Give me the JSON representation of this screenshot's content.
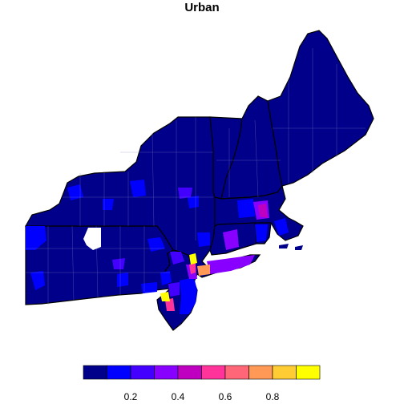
{
  "map": {
    "title": "Urban",
    "region": "Northeastern United States counties",
    "colors": {
      "low": "#00008b",
      "state_border": "#000000",
      "county_border": "#8080c0",
      "missing": "#ffffff"
    }
  },
  "legend": {
    "bins": [
      {
        "upper": 0.1,
        "color": "#00008b"
      },
      {
        "upper": 0.2,
        "color": "#0000ff"
      },
      {
        "upper": 0.3,
        "color": "#4400ff"
      },
      {
        "upper": 0.4,
        "color": "#8800ff"
      },
      {
        "upper": 0.5,
        "color": "#c000c0"
      },
      {
        "upper": 0.6,
        "color": "#ff3399"
      },
      {
        "upper": 0.7,
        "color": "#ff6677"
      },
      {
        "upper": 0.8,
        "color": "#ff9955"
      },
      {
        "upper": 0.9,
        "color": "#ffcc33"
      },
      {
        "upper": 1.0,
        "color": "#ffff00"
      }
    ],
    "tick_labels": [
      "0.2",
      "0.4",
      "0.6",
      "0.8"
    ]
  }
}
